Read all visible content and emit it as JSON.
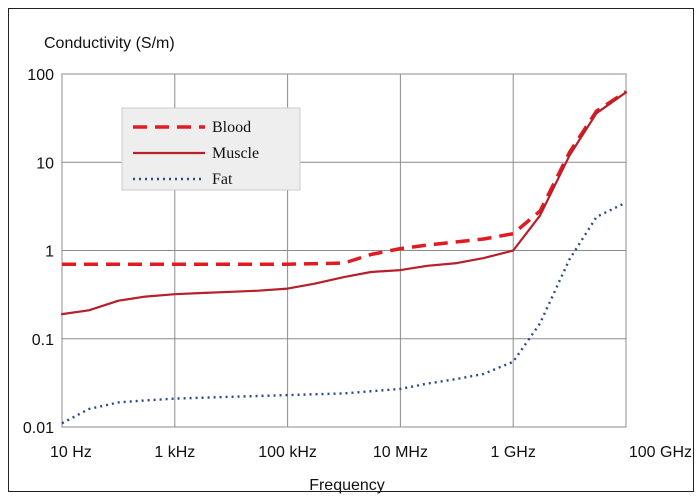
{
  "chart_data": {
    "type": "line",
    "title": "",
    "ylabel": "Conductivity (S/m)",
    "xlabel": "Frequency",
    "x_scale": "log",
    "y_scale": "log",
    "xlim": [
      10,
      100000000000
    ],
    "ylim": [
      0.01,
      100
    ],
    "x_tick_values": [
      10,
      1000,
      100000,
      10000000,
      1000000000,
      100000000000
    ],
    "x_tick_labels": [
      "10 Hz",
      "1 kHz",
      "100 kHz",
      "10 MHz",
      "1 GHz",
      "100 GHz"
    ],
    "y_tick_values": [
      100,
      10,
      1,
      0.1,
      0.01
    ],
    "y_tick_labels": [
      "100",
      "10",
      "1",
      "0.1",
      "0.01"
    ],
    "grid": true,
    "legend_position": "top-left",
    "series": [
      {
        "name": "Blood",
        "style": "dashed",
        "color": "#e01b22",
        "points": [
          [
            10,
            0.7
          ],
          [
            100,
            0.7
          ],
          [
            1000,
            0.7
          ],
          [
            10000,
            0.7
          ],
          [
            100000,
            0.7
          ],
          [
            1000000,
            0.72
          ],
          [
            3000000,
            0.9
          ],
          [
            10000000,
            1.05
          ],
          [
            30000000,
            1.15
          ],
          [
            100000000,
            1.25
          ],
          [
            300000000,
            1.35
          ],
          [
            1000000000,
            1.55
          ],
          [
            3000000000,
            2.8
          ],
          [
            10000000000,
            13
          ],
          [
            30000000000,
            38
          ],
          [
            100000000000,
            63
          ]
        ]
      },
      {
        "name": "Muscle",
        "style": "solid",
        "color": "#b5202a",
        "points": [
          [
            10,
            0.19
          ],
          [
            30,
            0.21
          ],
          [
            100,
            0.27
          ],
          [
            300,
            0.3
          ],
          [
            1000,
            0.32
          ],
          [
            3000,
            0.33
          ],
          [
            10000,
            0.34
          ],
          [
            30000,
            0.35
          ],
          [
            100000,
            0.37
          ],
          [
            300000,
            0.42
          ],
          [
            1000000,
            0.5
          ],
          [
            3000000,
            0.57
          ],
          [
            10000000,
            0.6
          ],
          [
            30000000,
            0.67
          ],
          [
            100000000,
            0.72
          ],
          [
            300000000,
            0.82
          ],
          [
            1000000000,
            1.0
          ],
          [
            3000000000,
            2.5
          ],
          [
            10000000000,
            12
          ],
          [
            30000000000,
            36
          ],
          [
            100000000000,
            62
          ]
        ]
      },
      {
        "name": "Fat",
        "style": "dotted",
        "color": "#2a4a8a",
        "points": [
          [
            10,
            0.011
          ],
          [
            30,
            0.016
          ],
          [
            100,
            0.019
          ],
          [
            300,
            0.02
          ],
          [
            1000,
            0.021
          ],
          [
            10000,
            0.022
          ],
          [
            100000,
            0.023
          ],
          [
            1000000,
            0.024
          ],
          [
            10000000,
            0.027
          ],
          [
            30000000,
            0.031
          ],
          [
            100000000,
            0.035
          ],
          [
            300000000,
            0.04
          ],
          [
            1000000000,
            0.055
          ],
          [
            3000000000,
            0.15
          ],
          [
            10000000000,
            0.8
          ],
          [
            30000000000,
            2.4
          ],
          [
            100000000000,
            3.5
          ]
        ]
      }
    ]
  }
}
